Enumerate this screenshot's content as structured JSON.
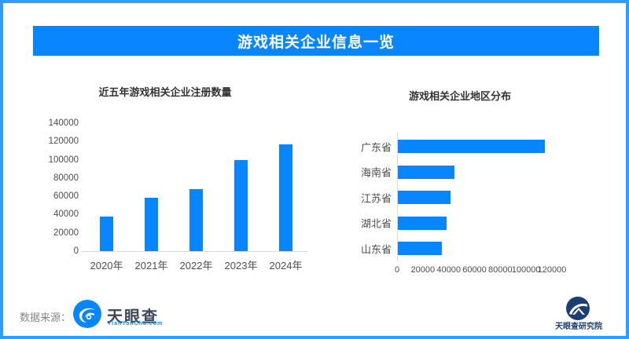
{
  "colors": {
    "accent": "#0886ff",
    "border": "#2e9dff",
    "title_text": "#ffffff",
    "chart_title_text": "#333333",
    "axis_text": "#4d4d4d",
    "axis_line": "#d9d9d9",
    "institute_navy": "#1d3e73"
  },
  "banner": {
    "title": "游戏相关企业信息一览"
  },
  "chart_data": [
    {
      "type": "bar",
      "title": "近五年游戏相关企业注册数量",
      "categories": [
        "2020年",
        "2021年",
        "2022年",
        "2023年",
        "2024年"
      ],
      "values": [
        38000,
        58000,
        68000,
        100000,
        117000
      ],
      "xlabel": "",
      "ylabel": "",
      "ylim": [
        0,
        140000
      ],
      "yticks": [
        0,
        20000,
        40000,
        60000,
        80000,
        100000,
        120000,
        140000
      ],
      "grid": false,
      "legend": false,
      "bar_color": "#0886ff"
    },
    {
      "type": "bar-horizontal",
      "title": "游戏相关企业地区分布",
      "categories": [
        "广东省",
        "海南省",
        "江苏省",
        "湖北省",
        "山东省"
      ],
      "values": [
        114000,
        44000,
        41000,
        38000,
        34000
      ],
      "xlabel": "",
      "ylabel": "",
      "xlim": [
        0,
        120000
      ],
      "xticks": [
        0,
        20000,
        40000,
        60000,
        80000,
        100000,
        120000
      ],
      "grid": false,
      "legend": false,
      "bar_color": "#0886ff"
    }
  ],
  "footer": {
    "source_label": "数据来源：",
    "tyc_logo_text": "天眼查",
    "tyc_logo_sub": "TianYanCha.com",
    "institute": "天眼查研究院"
  }
}
